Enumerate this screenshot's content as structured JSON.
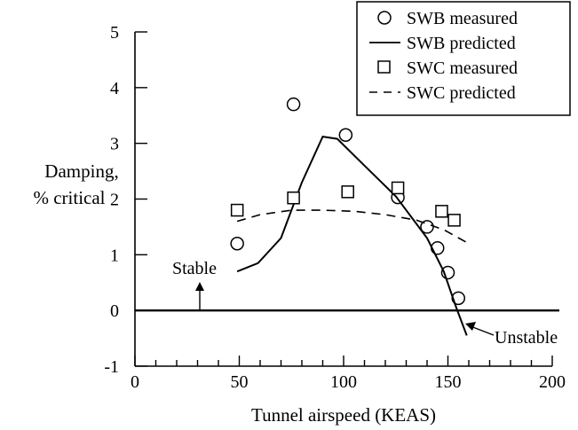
{
  "chart_data": {
    "type": "line",
    "xlabel": "Tunnel airspeed (KEAS)",
    "ylabel_line1": "Damping,",
    "ylabel_line2": "% critical",
    "xlim": [
      0,
      200
    ],
    "ylim": [
      -1,
      5
    ],
    "x_ticks": [
      0,
      50,
      100,
      150,
      200
    ],
    "y_ticks": [
      -1,
      0,
      1,
      2,
      3,
      4,
      5
    ],
    "reference_line_y": 0,
    "legend": {
      "placement": "top-right",
      "entries": [
        {
          "marker": "circle",
          "label": "SWB measured"
        },
        {
          "marker": "solid-line",
          "label": "SWB predicted"
        },
        {
          "marker": "square",
          "label": "SWC measured"
        },
        {
          "marker": "dashed-line",
          "label": "SWC predicted"
        }
      ]
    },
    "series": [
      {
        "name": "SWB measured",
        "style": "circle",
        "points": [
          [
            49,
            1.2
          ],
          [
            76,
            3.7
          ],
          [
            101,
            3.15
          ],
          [
            126,
            2.03
          ],
          [
            140,
            1.5
          ],
          [
            145,
            1.12
          ],
          [
            150,
            0.68
          ],
          [
            155,
            0.22
          ]
        ]
      },
      {
        "name": "SWB predicted",
        "style": "solid",
        "points": [
          [
            49,
            0.7
          ],
          [
            59,
            0.85
          ],
          [
            70,
            1.3
          ],
          [
            80,
            2.3
          ],
          [
            90,
            3.12
          ],
          [
            97,
            3.08
          ],
          [
            110,
            2.6
          ],
          [
            125,
            2.05
          ],
          [
            140,
            1.3
          ],
          [
            148,
            0.7
          ],
          [
            154,
            0.05
          ],
          [
            159,
            -0.45
          ]
        ]
      },
      {
        "name": "SWC measured",
        "style": "square",
        "points": [
          [
            49,
            1.8
          ],
          [
            76,
            2.02
          ],
          [
            102,
            2.13
          ],
          [
            126,
            2.2
          ],
          [
            147,
            1.78
          ],
          [
            153,
            1.62
          ]
        ]
      },
      {
        "name": "SWC predicted",
        "style": "dashed",
        "points": [
          [
            49,
            1.6
          ],
          [
            60,
            1.72
          ],
          [
            75,
            1.8
          ],
          [
            90,
            1.8
          ],
          [
            105,
            1.78
          ],
          [
            120,
            1.72
          ],
          [
            135,
            1.62
          ],
          [
            148,
            1.45
          ],
          [
            160,
            1.2
          ]
        ]
      }
    ],
    "annotations": [
      {
        "text": "Stable",
        "arrow": "up",
        "x": 31,
        "y": 0
      },
      {
        "text": "Unstable",
        "arrow": "down-left",
        "x": 160,
        "y": -0.5
      }
    ]
  }
}
